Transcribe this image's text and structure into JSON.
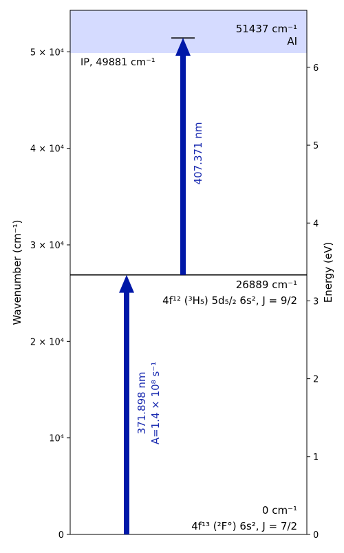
{
  "chart_data": {
    "type": "energy-level-diagram",
    "left_axis": {
      "label": "Wavenumber (cm⁻¹)",
      "range": [
        0,
        54300
      ],
      "ticks": [
        {
          "value": 0,
          "label": "0"
        },
        {
          "value": 10000,
          "label": "10⁴"
        },
        {
          "value": 20000,
          "label": "2 × 10⁴"
        },
        {
          "value": 30000,
          "label": "3 × 10⁴"
        },
        {
          "value": 40000,
          "label": "4 × 10⁴"
        },
        {
          "value": 50000,
          "label": "5 × 10⁴"
        }
      ]
    },
    "right_axis": {
      "label": "Energy (eV)",
      "ticks": [
        0,
        1,
        2,
        3,
        4,
        5,
        6
      ]
    },
    "ionization": {
      "label": "IP, 49881 cm⁻¹",
      "value": 49881,
      "shade_color": "#d5dbff"
    },
    "levels": [
      {
        "value": 0,
        "energy_label": "0 cm⁻¹",
        "config_label": "4f¹³ (²F°) 6s², J = 7/2"
      },
      {
        "value": 26889,
        "energy_label": "26889 cm⁻¹",
        "config_label": "4f¹² (³H₅) 5d₅/₂ 6s², J = 9/2"
      },
      {
        "value": 51437,
        "energy_label": "51437 cm⁻¹",
        "config_label": "AI"
      }
    ],
    "transitions": [
      {
        "from": 0,
        "to": 26889,
        "wavelength": "371.898 nm",
        "rate": "A=1.4 × 10⁸ s⁻¹"
      },
      {
        "from": 26889,
        "to": 51437,
        "wavelength": "407.371 nm"
      }
    ],
    "arrow_color": "#0018a8",
    "label_color": "#1a2bb0"
  }
}
